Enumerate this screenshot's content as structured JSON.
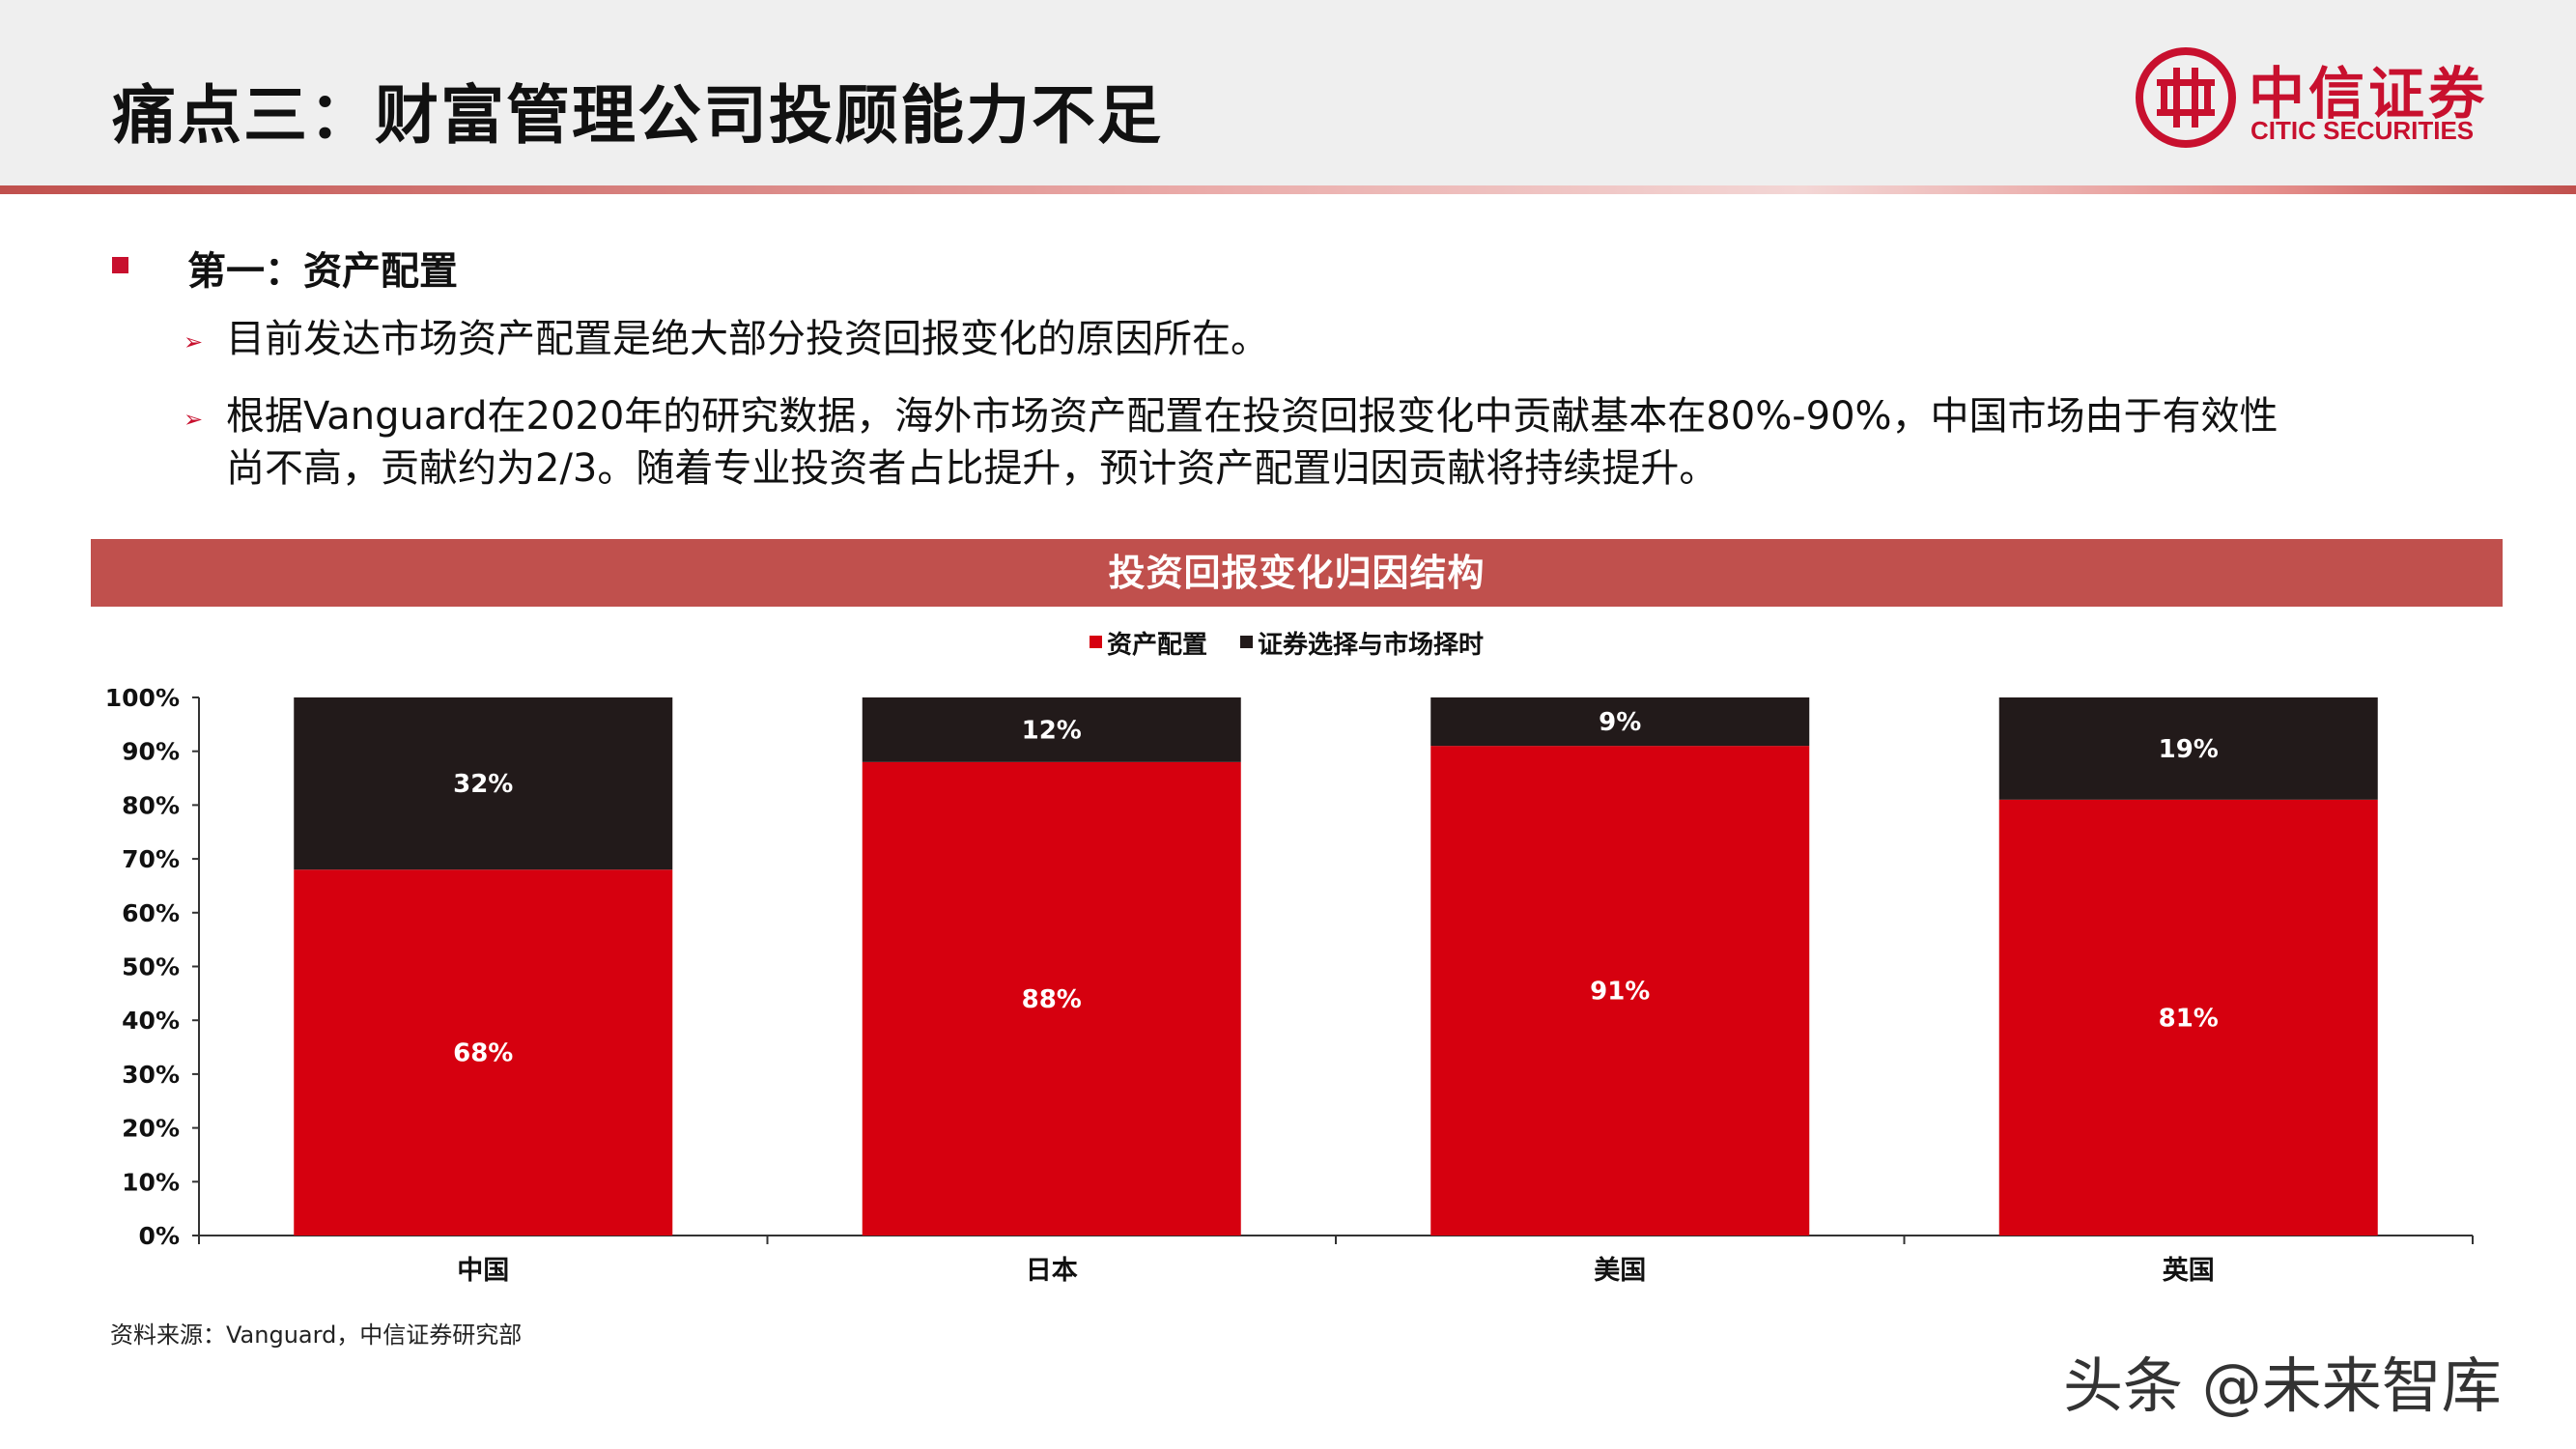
{
  "header": {
    "title": "痛点三：财富管理公司投顾能力不足"
  },
  "logo": {
    "name_cn": "中信证券",
    "name_en": "CITIC SECURITIES",
    "color": "#c8102e"
  },
  "content": {
    "heading": "第一：资产配置",
    "points": [
      {
        "lines": [
          "目前发达市场资产配置是绝大部分投资回报变化的原因所在。"
        ]
      },
      {
        "lines": [
          "根据Vanguard在2020年的研究数据，海外市场资产配置在投资回报变化中贡献基本在80%-90%，中国市场由于有效性",
          "尚不高，贡献约为2/3。随着专业投资者占比提升，预计资产配置归因贡献将持续提升。"
        ]
      }
    ]
  },
  "chart_banner": "投资回报变化归因结构",
  "chart_data": {
    "type": "bar",
    "stacked": true,
    "categories": [
      "中国",
      "日本",
      "美国",
      "英国"
    ],
    "series": [
      {
        "name": "资产配置",
        "values": [
          68,
          88,
          91,
          81
        ],
        "labels": [
          "68%",
          "88%",
          "91%",
          "81%"
        ],
        "color": "#d6000f"
      },
      {
        "name": "证券选择与市场择时",
        "values": [
          32,
          12,
          9,
          19
        ],
        "labels": [
          "32%",
          "12%",
          "9%",
          "19%"
        ],
        "color": "#221a1a"
      }
    ],
    "y_ticks": [
      "0%",
      "10%",
      "20%",
      "30%",
      "40%",
      "50%",
      "60%",
      "70%",
      "80%",
      "90%",
      "100%"
    ],
    "ylim": [
      0,
      100
    ],
    "grid": false,
    "legend_position": "top-center"
  },
  "source": "资料来源：Vanguard，中信证券研究部",
  "watermark": "头条 @未来智库"
}
